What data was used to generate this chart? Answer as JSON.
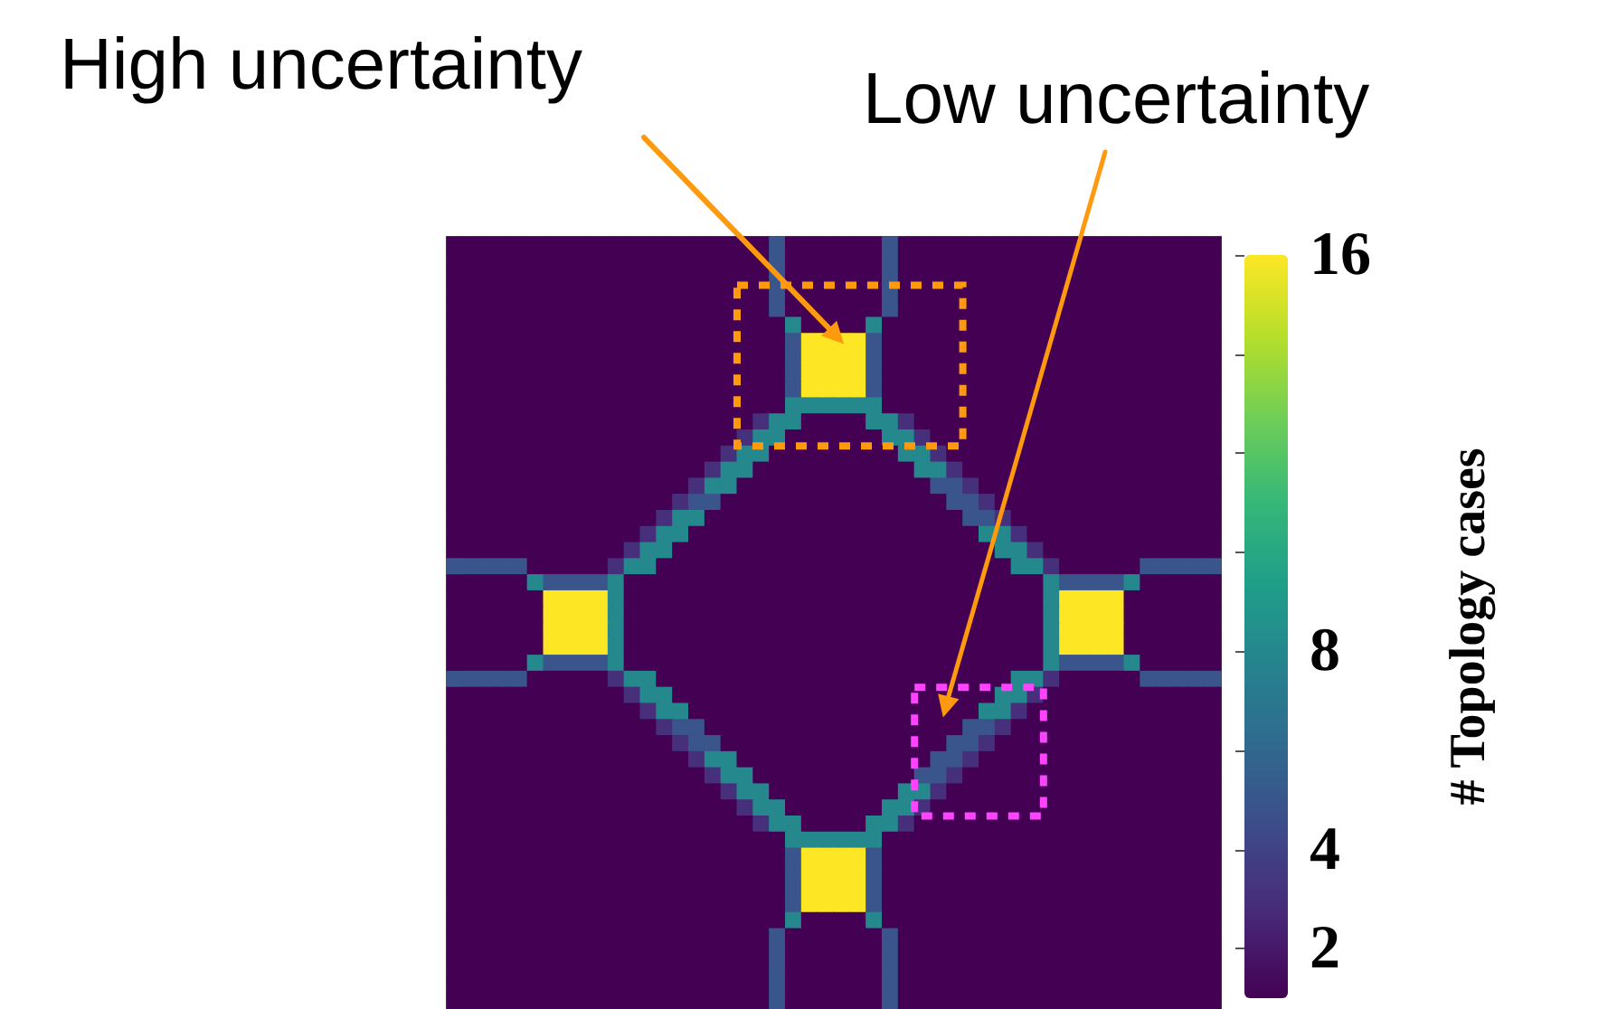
{
  "chart_data": {
    "type": "heatmap",
    "annotations": [
      "High uncertainty",
      "Low uncertainty"
    ],
    "clabel": "# Topology cases",
    "clim": [
      1,
      16
    ],
    "cticks": [
      2,
      4,
      {
        "value": 6,
        "label": null
      },
      8,
      {
        "value": 10,
        "label": null
      },
      {
        "value": 12,
        "label": null
      },
      {
        "value": 14,
        "label": null
      },
      16
    ],
    "categories": [
      null,
      null,
      null,
      null,
      null,
      null,
      null,
      null,
      null,
      null,
      null,
      null,
      null,
      null,
      null,
      null,
      null,
      null,
      null,
      null,
      null,
      null,
      null,
      null,
      null,
      null,
      null,
      null,
      null,
      null,
      null,
      null,
      null,
      null,
      null,
      null,
      null,
      null,
      null,
      null,
      null,
      null,
      null,
      null,
      null,
      null,
      null,
      null
    ],
    "y_categories": [
      null,
      null,
      null,
      null,
      null,
      null,
      null,
      null,
      null,
      null,
      null,
      null,
      null,
      null,
      null,
      null,
      null,
      null,
      null,
      null,
      null,
      null,
      null,
      null,
      null,
      null,
      null,
      null,
      null,
      null,
      null,
      null,
      null,
      null,
      null,
      null,
      null,
      null,
      null,
      null,
      null,
      null,
      null,
      null,
      null,
      null,
      null,
      null
    ],
    "cells": [
      [
        1,
        1,
        1,
        1,
        1,
        1,
        1,
        1,
        1,
        1,
        1,
        1,
        1,
        1,
        1,
        1,
        1,
        1,
        1,
        1,
        5,
        1,
        1,
        1,
        1,
        1,
        1,
        5,
        1,
        1,
        1,
        1,
        1,
        1,
        1,
        1,
        1,
        1,
        1,
        1,
        1,
        1,
        1,
        1,
        1,
        1,
        1,
        1
      ],
      [
        1,
        1,
        1,
        1,
        1,
        1,
        1,
        1,
        1,
        1,
        1,
        1,
        1,
        1,
        1,
        1,
        1,
        1,
        1,
        1,
        5,
        1,
        1,
        1,
        1,
        1,
        1,
        5,
        1,
        1,
        1,
        1,
        1,
        1,
        1,
        1,
        1,
        1,
        1,
        1,
        1,
        1,
        1,
        1,
        1,
        1,
        1,
        1
      ],
      [
        1,
        1,
        1,
        1,
        1,
        1,
        1,
        1,
        1,
        1,
        1,
        1,
        1,
        1,
        1,
        1,
        1,
        1,
        1,
        1,
        5,
        1,
        1,
        1,
        1,
        1,
        1,
        5,
        1,
        1,
        1,
        1,
        1,
        1,
        1,
        1,
        1,
        1,
        1,
        1,
        1,
        1,
        1,
        1,
        1,
        1,
        1,
        1
      ],
      [
        1,
        1,
        1,
        1,
        1,
        1,
        1,
        1,
        1,
        1,
        1,
        1,
        1,
        1,
        1,
        1,
        1,
        1,
        1,
        1,
        5,
        1,
        1,
        1,
        1,
        1,
        1,
        5,
        1,
        1,
        1,
        1,
        1,
        1,
        1,
        1,
        1,
        1,
        1,
        1,
        1,
        1,
        1,
        1,
        1,
        1,
        1,
        1
      ],
      [
        1,
        1,
        1,
        1,
        1,
        1,
        1,
        1,
        1,
        1,
        1,
        1,
        1,
        1,
        1,
        1,
        1,
        1,
        1,
        1,
        5,
        1,
        1,
        1,
        1,
        1,
        1,
        5,
        1,
        1,
        1,
        1,
        1,
        1,
        1,
        1,
        1,
        1,
        1,
        1,
        1,
        1,
        1,
        1,
        1,
        1,
        1,
        1
      ],
      [
        1,
        1,
        1,
        1,
        1,
        1,
        1,
        1,
        1,
        1,
        1,
        1,
        1,
        1,
        1,
        1,
        1,
        1,
        1,
        1,
        1,
        8,
        1,
        1,
        1,
        1,
        8,
        1,
        1,
        1,
        1,
        1,
        1,
        1,
        1,
        1,
        1,
        1,
        1,
        1,
        1,
        1,
        1,
        1,
        1,
        1,
        1,
        1
      ],
      [
        1,
        1,
        1,
        1,
        1,
        1,
        1,
        1,
        1,
        1,
        1,
        1,
        1,
        1,
        1,
        1,
        1,
        1,
        1,
        1,
        1,
        5,
        16,
        16,
        16,
        16,
        5,
        1,
        1,
        1,
        1,
        1,
        1,
        1,
        1,
        1,
        1,
        1,
        1,
        1,
        1,
        1,
        1,
        1,
        1,
        1,
        1,
        1
      ],
      [
        1,
        1,
        1,
        1,
        1,
        1,
        1,
        1,
        1,
        1,
        1,
        1,
        1,
        1,
        1,
        1,
        1,
        1,
        1,
        1,
        1,
        5,
        16,
        16,
        16,
        16,
        5,
        1,
        1,
        1,
        1,
        1,
        1,
        1,
        1,
        1,
        1,
        1,
        1,
        1,
        1,
        1,
        1,
        1,
        1,
        1,
        1,
        1
      ],
      [
        1,
        1,
        1,
        1,
        1,
        1,
        1,
        1,
        1,
        1,
        1,
        1,
        1,
        1,
        1,
        1,
        1,
        1,
        1,
        1,
        1,
        5,
        16,
        16,
        16,
        16,
        5,
        1,
        1,
        1,
        1,
        1,
        1,
        1,
        1,
        1,
        1,
        1,
        1,
        1,
        1,
        1,
        1,
        1,
        1,
        1,
        1,
        1
      ],
      [
        1,
        1,
        1,
        1,
        1,
        1,
        1,
        1,
        1,
        1,
        1,
        1,
        1,
        1,
        1,
        1,
        1,
        1,
        1,
        1,
        1,
        5,
        16,
        16,
        16,
        16,
        5,
        1,
        1,
        1,
        1,
        1,
        1,
        1,
        1,
        1,
        1,
        1,
        1,
        1,
        1,
        1,
        1,
        1,
        1,
        1,
        1,
        1
      ],
      [
        1,
        1,
        1,
        1,
        1,
        1,
        1,
        1,
        1,
        1,
        1,
        1,
        1,
        1,
        1,
        1,
        1,
        1,
        1,
        1,
        1,
        8,
        8,
        8,
        8,
        8,
        8,
        1,
        1,
        1,
        1,
        1,
        1,
        1,
        1,
        1,
        1,
        1,
        1,
        1,
        1,
        1,
        1,
        1,
        1,
        1,
        1,
        1
      ],
      [
        1,
        1,
        1,
        1,
        1,
        1,
        1,
        1,
        1,
        1,
        1,
        1,
        1,
        1,
        1,
        1,
        1,
        1,
        1,
        3,
        8,
        8,
        1,
        1,
        1,
        1,
        8,
        8,
        3,
        1,
        1,
        1,
        1,
        1,
        1,
        1,
        1,
        1,
        1,
        1,
        1,
        1,
        1,
        1,
        1,
        1,
        1,
        1
      ],
      [
        1,
        1,
        1,
        1,
        1,
        1,
        1,
        1,
        1,
        1,
        1,
        1,
        1,
        1,
        1,
        1,
        1,
        1,
        3,
        8,
        8,
        1,
        1,
        1,
        1,
        1,
        1,
        8,
        8,
        3,
        1,
        1,
        1,
        1,
        1,
        1,
        1,
        1,
        1,
        1,
        1,
        1,
        1,
        1,
        1,
        1,
        1,
        1
      ],
      [
        1,
        1,
        1,
        1,
        1,
        1,
        1,
        1,
        1,
        1,
        1,
        1,
        1,
        1,
        1,
        1,
        1,
        3,
        8,
        8,
        1,
        1,
        1,
        1,
        1,
        1,
        1,
        1,
        8,
        8,
        3,
        1,
        1,
        1,
        1,
        1,
        1,
        1,
        1,
        1,
        1,
        1,
        1,
        1,
        1,
        1,
        1,
        1
      ],
      [
        1,
        1,
        1,
        1,
        1,
        1,
        1,
        1,
        1,
        1,
        1,
        1,
        1,
        1,
        1,
        1,
        3,
        8,
        8,
        1,
        1,
        1,
        1,
        1,
        1,
        1,
        1,
        1,
        1,
        8,
        8,
        3,
        1,
        1,
        1,
        1,
        1,
        1,
        1,
        1,
        1,
        1,
        1,
        1,
        1,
        1,
        1,
        1
      ],
      [
        1,
        1,
        1,
        1,
        1,
        1,
        1,
        1,
        1,
        1,
        1,
        1,
        1,
        1,
        1,
        3,
        8,
        8,
        1,
        1,
        1,
        1,
        1,
        1,
        1,
        1,
        1,
        1,
        1,
        1,
        5,
        5,
        3,
        1,
        1,
        1,
        1,
        1,
        1,
        1,
        1,
        1,
        1,
        1,
        1,
        1,
        1,
        1
      ],
      [
        1,
        1,
        1,
        1,
        1,
        1,
        1,
        1,
        1,
        1,
        1,
        1,
        1,
        1,
        3,
        5,
        5,
        1,
        1,
        1,
        1,
        1,
        1,
        1,
        1,
        1,
        1,
        1,
        1,
        1,
        1,
        5,
        5,
        3,
        1,
        1,
        1,
        1,
        1,
        1,
        1,
        1,
        1,
        1,
        1,
        1,
        1,
        1
      ],
      [
        1,
        1,
        1,
        1,
        1,
        1,
        1,
        1,
        1,
        1,
        1,
        1,
        1,
        3,
        8,
        8,
        1,
        1,
        1,
        1,
        1,
        1,
        1,
        1,
        1,
        1,
        1,
        1,
        1,
        1,
        1,
        1,
        5,
        5,
        3,
        1,
        1,
        1,
        1,
        1,
        1,
        1,
        1,
        1,
        1,
        1,
        1,
        1
      ],
      [
        1,
        1,
        1,
        1,
        1,
        1,
        1,
        1,
        1,
        1,
        1,
        1,
        3,
        8,
        8,
        1,
        1,
        1,
        1,
        1,
        1,
        1,
        1,
        1,
        1,
        1,
        1,
        1,
        1,
        1,
        1,
        1,
        1,
        8,
        8,
        3,
        1,
        1,
        1,
        1,
        1,
        1,
        1,
        1,
        1,
        1,
        1,
        1
      ],
      [
        1,
        1,
        1,
        1,
        1,
        1,
        1,
        1,
        1,
        1,
        1,
        3,
        8,
        8,
        1,
        1,
        1,
        1,
        1,
        1,
        1,
        1,
        1,
        1,
        1,
        1,
        1,
        1,
        1,
        1,
        1,
        1,
        1,
        1,
        8,
        8,
        3,
        1,
        1,
        1,
        1,
        1,
        1,
        1,
        1,
        1,
        1,
        1
      ],
      [
        5,
        5,
        5,
        5,
        5,
        1,
        1,
        1,
        1,
        1,
        3,
        8,
        8,
        1,
        1,
        1,
        1,
        1,
        1,
        1,
        1,
        1,
        1,
        1,
        1,
        1,
        1,
        1,
        1,
        1,
        1,
        1,
        1,
        1,
        1,
        8,
        8,
        3,
        1,
        1,
        1,
        1,
        1,
        5,
        5,
        5,
        5,
        5
      ],
      [
        1,
        1,
        1,
        1,
        1,
        8,
        5,
        5,
        5,
        5,
        8,
        1,
        1,
        1,
        1,
        1,
        1,
        1,
        1,
        1,
        1,
        1,
        1,
        1,
        1,
        1,
        1,
        1,
        1,
        1,
        1,
        1,
        1,
        1,
        1,
        1,
        1,
        8,
        5,
        5,
        5,
        5,
        8,
        1,
        1,
        1,
        1,
        1
      ],
      [
        1,
        1,
        1,
        1,
        1,
        1,
        16,
        16,
        16,
        16,
        8,
        1,
        1,
        1,
        1,
        1,
        1,
        1,
        1,
        1,
        1,
        1,
        1,
        1,
        1,
        1,
        1,
        1,
        1,
        1,
        1,
        1,
        1,
        1,
        1,
        1,
        1,
        8,
        16,
        16,
        16,
        16,
        1,
        1,
        1,
        1,
        1,
        1
      ],
      [
        1,
        1,
        1,
        1,
        1,
        1,
        16,
        16,
        16,
        16,
        8,
        1,
        1,
        1,
        1,
        1,
        1,
        1,
        1,
        1,
        1,
        1,
        1,
        1,
        1,
        1,
        1,
        1,
        1,
        1,
        1,
        1,
        1,
        1,
        1,
        1,
        1,
        8,
        16,
        16,
        16,
        16,
        1,
        1,
        1,
        1,
        1,
        1
      ],
      [
        1,
        1,
        1,
        1,
        1,
        1,
        16,
        16,
        16,
        16,
        8,
        1,
        1,
        1,
        1,
        1,
        1,
        1,
        1,
        1,
        1,
        1,
        1,
        1,
        1,
        1,
        1,
        1,
        1,
        1,
        1,
        1,
        1,
        1,
        1,
        1,
        1,
        8,
        16,
        16,
        16,
        16,
        1,
        1,
        1,
        1,
        1,
        1
      ],
      [
        1,
        1,
        1,
        1,
        1,
        1,
        16,
        16,
        16,
        16,
        8,
        1,
        1,
        1,
        1,
        1,
        1,
        1,
        1,
        1,
        1,
        1,
        1,
        1,
        1,
        1,
        1,
        1,
        1,
        1,
        1,
        1,
        1,
        1,
        1,
        1,
        1,
        8,
        16,
        16,
        16,
        16,
        1,
        1,
        1,
        1,
        1,
        1
      ],
      [
        1,
        1,
        1,
        1,
        1,
        8,
        5,
        5,
        5,
        5,
        8,
        1,
        1,
        1,
        1,
        1,
        1,
        1,
        1,
        1,
        1,
        1,
        1,
        1,
        1,
        1,
        1,
        1,
        1,
        1,
        1,
        1,
        1,
        1,
        1,
        1,
        1,
        8,
        5,
        5,
        5,
        5,
        8,
        1,
        1,
        1,
        1,
        1
      ],
      [
        5,
        5,
        5,
        5,
        5,
        1,
        1,
        1,
        1,
        1,
        3,
        8,
        8,
        1,
        1,
        1,
        1,
        1,
        1,
        1,
        1,
        1,
        1,
        1,
        1,
        1,
        1,
        1,
        1,
        1,
        1,
        1,
        1,
        1,
        1,
        8,
        8,
        3,
        1,
        1,
        1,
        1,
        1,
        5,
        5,
        5,
        5,
        5
      ],
      [
        1,
        1,
        1,
        1,
        1,
        1,
        1,
        1,
        1,
        1,
        1,
        3,
        8,
        8,
        1,
        1,
        1,
        1,
        1,
        1,
        1,
        1,
        1,
        1,
        1,
        1,
        1,
        1,
        1,
        1,
        1,
        1,
        1,
        1,
        8,
        8,
        3,
        1,
        1,
        1,
        1,
        1,
        1,
        1,
        1,
        1,
        1,
        1
      ],
      [
        1,
        1,
        1,
        1,
        1,
        1,
        1,
        1,
        1,
        1,
        1,
        1,
        3,
        8,
        8,
        1,
        1,
        1,
        1,
        1,
        1,
        1,
        1,
        1,
        1,
        1,
        1,
        1,
        1,
        1,
        1,
        1,
        1,
        8,
        8,
        3,
        1,
        1,
        1,
        1,
        1,
        1,
        1,
        1,
        1,
        1,
        1,
        1
      ],
      [
        1,
        1,
        1,
        1,
        1,
        1,
        1,
        1,
        1,
        1,
        1,
        1,
        1,
        3,
        5,
        5,
        1,
        1,
        1,
        1,
        1,
        1,
        1,
        1,
        1,
        1,
        1,
        1,
        1,
        1,
        1,
        1,
        5,
        5,
        3,
        1,
        1,
        1,
        1,
        1,
        1,
        1,
        1,
        1,
        1,
        1,
        1,
        1
      ],
      [
        1,
        1,
        1,
        1,
        1,
        1,
        1,
        1,
        1,
        1,
        1,
        1,
        1,
        1,
        3,
        5,
        5,
        1,
        1,
        1,
        1,
        1,
        1,
        1,
        1,
        1,
        1,
        1,
        1,
        1,
        1,
        5,
        5,
        3,
        1,
        1,
        1,
        1,
        1,
        1,
        1,
        1,
        1,
        1,
        1,
        1,
        1,
        1
      ],
      [
        1,
        1,
        1,
        1,
        1,
        1,
        1,
        1,
        1,
        1,
        1,
        1,
        1,
        1,
        1,
        3,
        8,
        8,
        1,
        1,
        1,
        1,
        1,
        1,
        1,
        1,
        1,
        1,
        1,
        1,
        5,
        5,
        3,
        1,
        1,
        1,
        1,
        1,
        1,
        1,
        1,
        1,
        1,
        1,
        1,
        1,
        1,
        1
      ],
      [
        1,
        1,
        1,
        1,
        1,
        1,
        1,
        1,
        1,
        1,
        1,
        1,
        1,
        1,
        1,
        1,
        3,
        8,
        8,
        1,
        1,
        1,
        1,
        1,
        1,
        1,
        1,
        1,
        1,
        5,
        5,
        3,
        1,
        1,
        1,
        1,
        1,
        1,
        1,
        1,
        1,
        1,
        1,
        1,
        1,
        1,
        1,
        1
      ],
      [
        1,
        1,
        1,
        1,
        1,
        1,
        1,
        1,
        1,
        1,
        1,
        1,
        1,
        1,
        1,
        1,
        1,
        3,
        8,
        8,
        1,
        1,
        1,
        1,
        1,
        1,
        1,
        1,
        8,
        8,
        3,
        1,
        1,
        1,
        1,
        1,
        1,
        1,
        1,
        1,
        1,
        1,
        1,
        1,
        1,
        1,
        1,
        1
      ],
      [
        1,
        1,
        1,
        1,
        1,
        1,
        1,
        1,
        1,
        1,
        1,
        1,
        1,
        1,
        1,
        1,
        1,
        1,
        3,
        8,
        8,
        1,
        1,
        1,
        1,
        1,
        1,
        8,
        8,
        3,
        1,
        1,
        1,
        1,
        1,
        1,
        1,
        1,
        1,
        1,
        1,
        1,
        1,
        1,
        1,
        1,
        1,
        1
      ],
      [
        1,
        1,
        1,
        1,
        1,
        1,
        1,
        1,
        1,
        1,
        1,
        1,
        1,
        1,
        1,
        1,
        1,
        1,
        1,
        3,
        8,
        8,
        1,
        1,
        1,
        1,
        8,
        8,
        3,
        1,
        1,
        1,
        1,
        1,
        1,
        1,
        1,
        1,
        1,
        1,
        1,
        1,
        1,
        1,
        1,
        1,
        1,
        1
      ],
      [
        1,
        1,
        1,
        1,
        1,
        1,
        1,
        1,
        1,
        1,
        1,
        1,
        1,
        1,
        1,
        1,
        1,
        1,
        1,
        1,
        1,
        8,
        8,
        8,
        8,
        8,
        8,
        1,
        1,
        1,
        1,
        1,
        1,
        1,
        1,
        1,
        1,
        1,
        1,
        1,
        1,
        1,
        1,
        1,
        1,
        1,
        1,
        1
      ],
      [
        1,
        1,
        1,
        1,
        1,
        1,
        1,
        1,
        1,
        1,
        1,
        1,
        1,
        1,
        1,
        1,
        1,
        1,
        1,
        1,
        1,
        5,
        16,
        16,
        16,
        16,
        5,
        1,
        1,
        1,
        1,
        1,
        1,
        1,
        1,
        1,
        1,
        1,
        1,
        1,
        1,
        1,
        1,
        1,
        1,
        1,
        1,
        1
      ],
      [
        1,
        1,
        1,
        1,
        1,
        1,
        1,
        1,
        1,
        1,
        1,
        1,
        1,
        1,
        1,
        1,
        1,
        1,
        1,
        1,
        1,
        5,
        16,
        16,
        16,
        16,
        5,
        1,
        1,
        1,
        1,
        1,
        1,
        1,
        1,
        1,
        1,
        1,
        1,
        1,
        1,
        1,
        1,
        1,
        1,
        1,
        1,
        1
      ],
      [
        1,
        1,
        1,
        1,
        1,
        1,
        1,
        1,
        1,
        1,
        1,
        1,
        1,
        1,
        1,
        1,
        1,
        1,
        1,
        1,
        1,
        5,
        16,
        16,
        16,
        16,
        5,
        1,
        1,
        1,
        1,
        1,
        1,
        1,
        1,
        1,
        1,
        1,
        1,
        1,
        1,
        1,
        1,
        1,
        1,
        1,
        1,
        1
      ],
      [
        1,
        1,
        1,
        1,
        1,
        1,
        1,
        1,
        1,
        1,
        1,
        1,
        1,
        1,
        1,
        1,
        1,
        1,
        1,
        1,
        1,
        5,
        16,
        16,
        16,
        16,
        5,
        1,
        1,
        1,
        1,
        1,
        1,
        1,
        1,
        1,
        1,
        1,
        1,
        1,
        1,
        1,
        1,
        1,
        1,
        1,
        1,
        1
      ],
      [
        1,
        1,
        1,
        1,
        1,
        1,
        1,
        1,
        1,
        1,
        1,
        1,
        1,
        1,
        1,
        1,
        1,
        1,
        1,
        1,
        1,
        8,
        1,
        1,
        1,
        1,
        8,
        1,
        1,
        1,
        1,
        1,
        1,
        1,
        1,
        1,
        1,
        1,
        1,
        1,
        1,
        1,
        1,
        1,
        1,
        1,
        1,
        1
      ],
      [
        1,
        1,
        1,
        1,
        1,
        1,
        1,
        1,
        1,
        1,
        1,
        1,
        1,
        1,
        1,
        1,
        1,
        1,
        1,
        1,
        5,
        1,
        1,
        1,
        1,
        1,
        1,
        5,
        1,
        1,
        1,
        1,
        1,
        1,
        1,
        1,
        1,
        1,
        1,
        1,
        1,
        1,
        1,
        1,
        1,
        1,
        1,
        1
      ],
      [
        1,
        1,
        1,
        1,
        1,
        1,
        1,
        1,
        1,
        1,
        1,
        1,
        1,
        1,
        1,
        1,
        1,
        1,
        1,
        1,
        5,
        1,
        1,
        1,
        1,
        1,
        1,
        5,
        1,
        1,
        1,
        1,
        1,
        1,
        1,
        1,
        1,
        1,
        1,
        1,
        1,
        1,
        1,
        1,
        1,
        1,
        1,
        1
      ],
      [
        1,
        1,
        1,
        1,
        1,
        1,
        1,
        1,
        1,
        1,
        1,
        1,
        1,
        1,
        1,
        1,
        1,
        1,
        1,
        1,
        5,
        1,
        1,
        1,
        1,
        1,
        1,
        5,
        1,
        1,
        1,
        1,
        1,
        1,
        1,
        1,
        1,
        1,
        1,
        1,
        1,
        1,
        1,
        1,
        1,
        1,
        1,
        1
      ],
      [
        1,
        1,
        1,
        1,
        1,
        1,
        1,
        1,
        1,
        1,
        1,
        1,
        1,
        1,
        1,
        1,
        1,
        1,
        1,
        1,
        5,
        1,
        1,
        1,
        1,
        1,
        1,
        5,
        1,
        1,
        1,
        1,
        1,
        1,
        1,
        1,
        1,
        1,
        1,
        1,
        1,
        1,
        1,
        1,
        1,
        1,
        1,
        1
      ],
      [
        1,
        1,
        1,
        1,
        1,
        1,
        1,
        1,
        1,
        1,
        1,
        1,
        1,
        1,
        1,
        1,
        1,
        1,
        1,
        1,
        5,
        1,
        1,
        1,
        1,
        1,
        1,
        5,
        1,
        1,
        1,
        1,
        1,
        1,
        1,
        1,
        1,
        1,
        1,
        1,
        1,
        1,
        1,
        1,
        1,
        1,
        1,
        1
      ]
    ]
  }
}
